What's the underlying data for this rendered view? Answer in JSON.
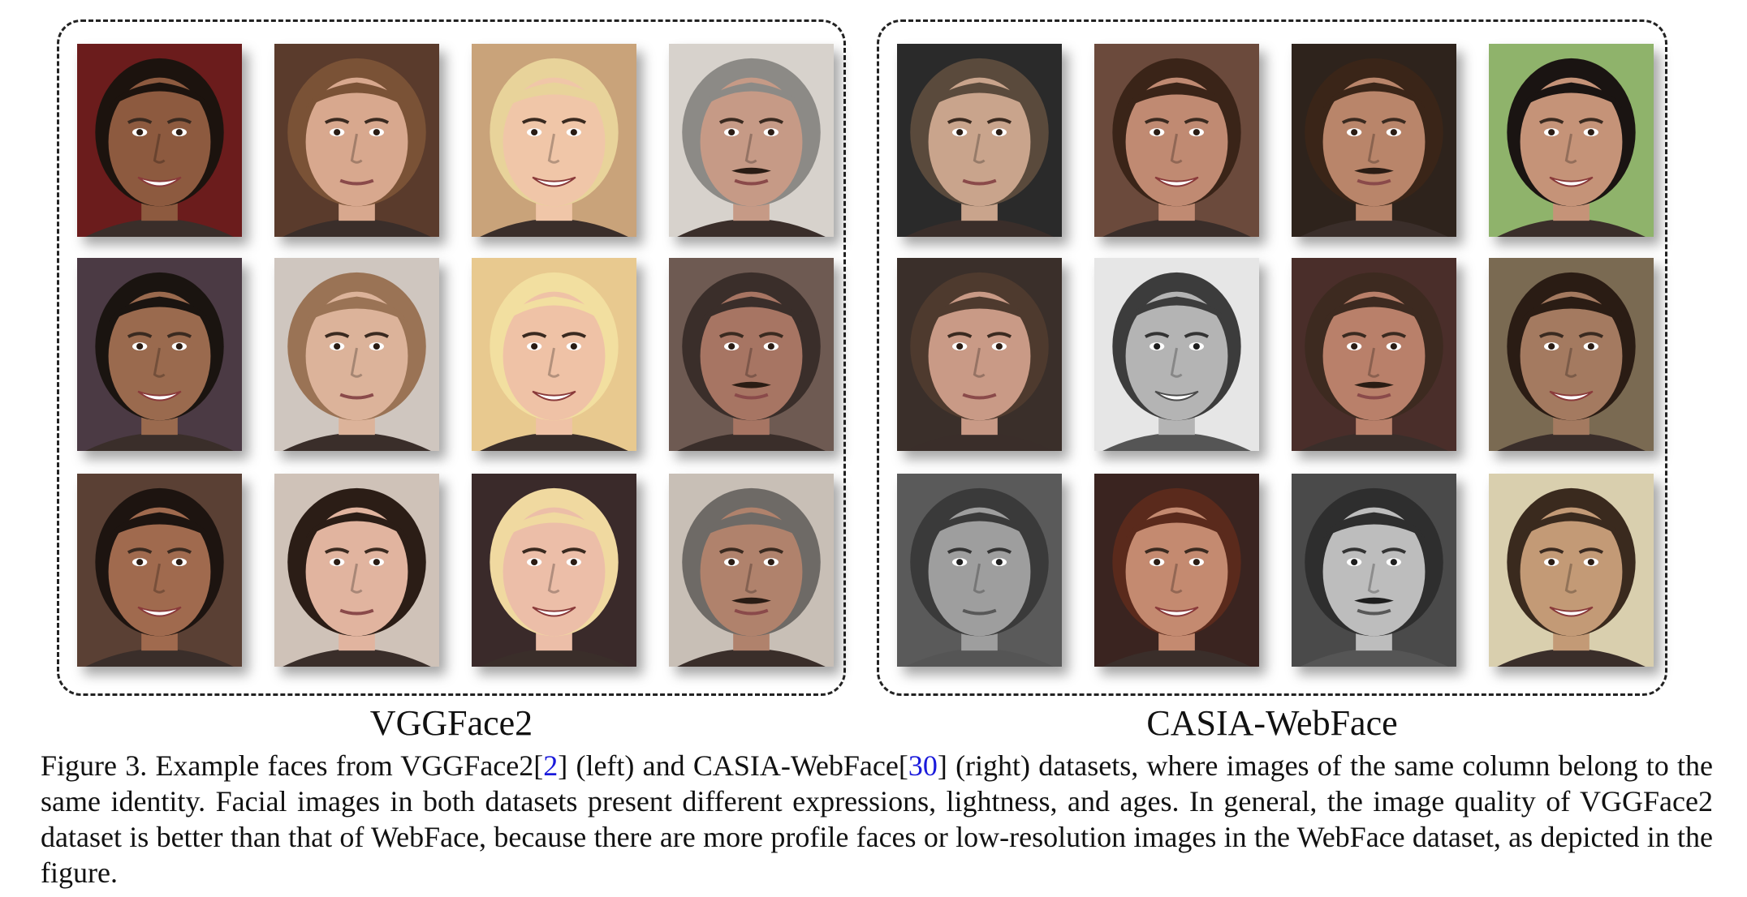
{
  "figure": {
    "groups": [
      {
        "label": "VGGFace2",
        "faces": [
          {
            "skin": "#8d5a3f",
            "hair": "#1c130e",
            "bg": "#6b1c1c",
            "gray": false
          },
          {
            "skin": "#d8a88e",
            "hair": "#7a5236",
            "bg": "#5a3b2c",
            "gray": false
          },
          {
            "skin": "#f0c6a8",
            "hair": "#e8d39a",
            "bg": "#c9a37a",
            "gray": false
          },
          {
            "skin": "#c69a86",
            "hair": "#8c8a86",
            "bg": "#d7d2cc",
            "gray": false
          },
          {
            "skin": "#9a6a4e",
            "hair": "#1a1410",
            "bg": "#4b3a44",
            "gray": false
          },
          {
            "skin": "#dcb39a",
            "hair": "#9a7355",
            "bg": "#cfc6bf",
            "gray": false
          },
          {
            "skin": "#efc2a6",
            "hair": "#f2dfa0",
            "bg": "#e8c98f",
            "gray": false
          },
          {
            "skin": "#a77563",
            "hair": "#3a2e2a",
            "bg": "#6e5a52",
            "gray": false
          },
          {
            "skin": "#a06a4e",
            "hair": "#1d1410",
            "bg": "#5a4034",
            "gray": false
          },
          {
            "skin": "#e1b49f",
            "hair": "#2b1d16",
            "bg": "#cfc2b8",
            "gray": false
          },
          {
            "skin": "#ecbea8",
            "hair": "#f0d9a0",
            "bg": "#3a2a2a",
            "gray": false
          },
          {
            "skin": "#b0826c",
            "hair": "#6e6a66",
            "bg": "#c8bfb6",
            "gray": false
          }
        ]
      },
      {
        "label": "CASIA-WebFace",
        "faces": [
          {
            "skin": "#c9a48c",
            "hair": "#5a4a3c",
            "bg": "#2a2a2a",
            "gray": false
          },
          {
            "skin": "#c08a72",
            "hair": "#3a2418",
            "bg": "#6b4a3c",
            "gray": false
          },
          {
            "skin": "#b9856a",
            "hair": "#3a2518",
            "bg": "#2e231c",
            "gray": false
          },
          {
            "skin": "#c59378",
            "hair": "#1a1412",
            "bg": "#8fb36b",
            "gray": false
          },
          {
            "skin": "#c99a86",
            "hair": "#4e3a2e",
            "bg": "#3a2f2a",
            "gray": false
          },
          {
            "skin": "#b4b4b4",
            "hair": "#3c3c3c",
            "bg": "#e6e6e6",
            "gray": true
          },
          {
            "skin": "#b9806a",
            "hair": "#3d2a20",
            "bg": "#4a2e2a",
            "gray": false
          },
          {
            "skin": "#a47a60",
            "hair": "#2a1c14",
            "bg": "#7a6a52",
            "gray": false
          },
          {
            "skin": "#9e9e9e",
            "hair": "#3a3a3a",
            "bg": "#5a5a5a",
            "gray": true
          },
          {
            "skin": "#c48a70",
            "hair": "#5a2a1c",
            "bg": "#3a2420",
            "gray": false
          },
          {
            "skin": "#bdbdbd",
            "hair": "#2e2e2e",
            "bg": "#4a4a4a",
            "gray": true
          },
          {
            "skin": "#c39a76",
            "hair": "#3a2a1e",
            "bg": "#d9cfae",
            "gray": false
          }
        ]
      }
    ],
    "caption": {
      "prefix": "Figure 3.",
      "text_1": "  Example faces from VGGFace2[",
      "cite_1": "2",
      "text_2": "] (left) and CASIA-WebFace[",
      "cite_2": "30",
      "text_3": "] (right) datasets, where images of the same column belong to the same identity. Facial images in both datasets present different expressions, lightness, and ages. In general, the image quality of VGGFace2 dataset is better than that of WebFace, because there are more profile faces or low-resolution images in the WebFace dataset, as depicted in the figure."
    }
  }
}
